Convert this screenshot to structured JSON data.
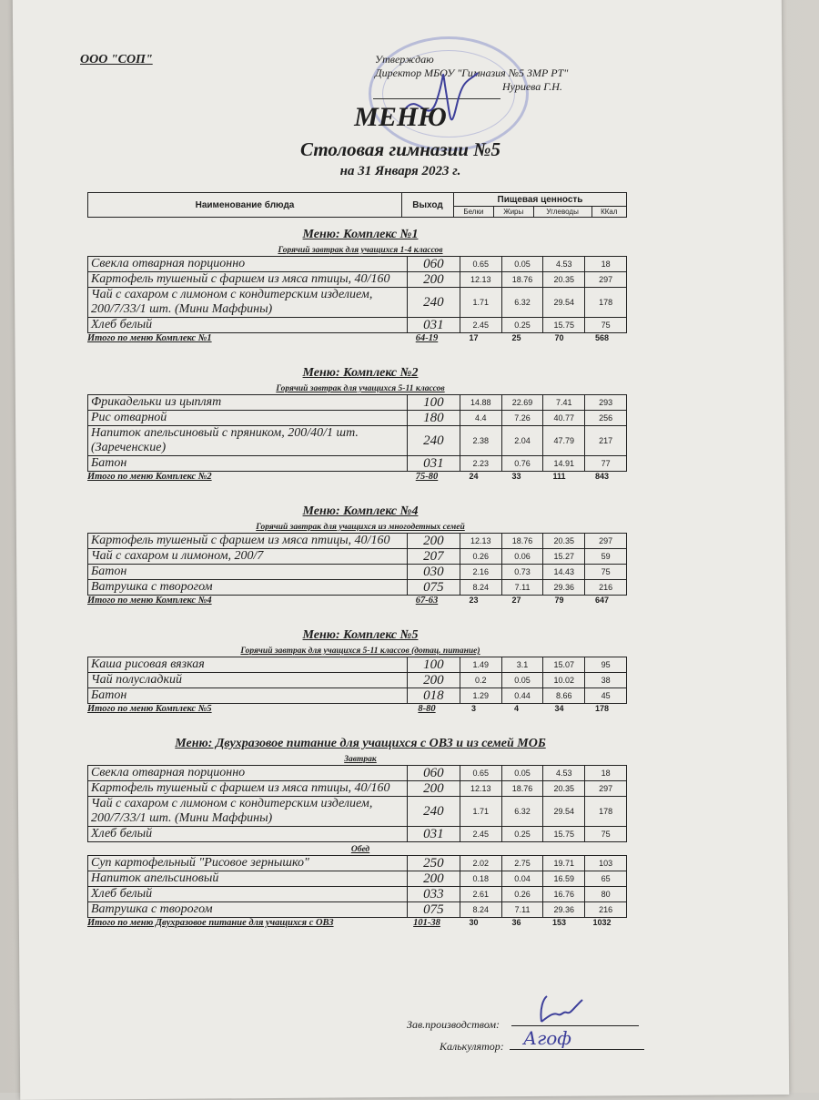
{
  "header": {
    "organization": "ООО \"СОП\"",
    "approval": {
      "line1": "Утверждаю",
      "line2": "Директор МБОУ \"Гимназия №5 ЗМР РТ\"",
      "name": "Нуриева Г.Н."
    },
    "title": "МЕНЮ",
    "subtitle": "Столовая гимназии №5",
    "date": "на 31 Января 2023 г."
  },
  "columns": {
    "name": "Наименование блюда",
    "output": "Выход",
    "nutrition": "Пищевая ценность",
    "protein": "Белки",
    "fat": "Жиры",
    "carbs": "Углеводы",
    "kcal": "ККал"
  },
  "sections": [
    {
      "title": "Меню: Комплекс №1",
      "groups": [
        {
          "caption": "Горячий завтрак для учащихся 1-4 классов",
          "rows": [
            {
              "name": "Свекла отварная порционно",
              "output": "060",
              "protein": "0.65",
              "fat": "0.05",
              "carbs": "4.53",
              "kcal": "18"
            },
            {
              "name": "Картофель тушеный с фаршем из мяса птицы, 40/160",
              "output": "200",
              "protein": "12.13",
              "fat": "18.76",
              "carbs": "20.35",
              "kcal": "297"
            },
            {
              "name": "Чай с сахаром с лимоном с кондитерским изделием, 200/7/33/1 шт. (Мини Маффины)",
              "output": "240",
              "protein": "1.71",
              "fat": "6.32",
              "carbs": "29.54",
              "kcal": "178"
            },
            {
              "name": "Хлеб белый",
              "output": "031",
              "protein": "2.45",
              "fat": "0.25",
              "carbs": "15.75",
              "kcal": "75"
            }
          ]
        }
      ],
      "total": {
        "label": "Итого по меню Комплекс №1",
        "price": "64-19",
        "protein": "17",
        "fat": "25",
        "carbs": "70",
        "kcal": "568"
      }
    },
    {
      "title": "Меню: Комплекс №2",
      "groups": [
        {
          "caption": "Горячий завтрак для учащихся 5-11 классов",
          "rows": [
            {
              "name": "Фрикадельки из цыплят",
              "output": "100",
              "protein": "14.88",
              "fat": "22.69",
              "carbs": "7.41",
              "kcal": "293"
            },
            {
              "name": "Рис отварной",
              "output": "180",
              "protein": "4.4",
              "fat": "7.26",
              "carbs": "40.77",
              "kcal": "256"
            },
            {
              "name": "Напиток апельсиновый с пряником, 200/40/1 шт. (Зареченские)",
              "output": "240",
              "protein": "2.38",
              "fat": "2.04",
              "carbs": "47.79",
              "kcal": "217"
            },
            {
              "name": "Батон",
              "output": "031",
              "protein": "2.23",
              "fat": "0.76",
              "carbs": "14.91",
              "kcal": "77"
            }
          ]
        }
      ],
      "total": {
        "label": "Итого по меню Комплекс №2",
        "price": "75-80",
        "protein": "24",
        "fat": "33",
        "carbs": "111",
        "kcal": "843"
      }
    },
    {
      "title": "Меню: Комплекс №4",
      "groups": [
        {
          "caption": "Горячий завтрак для учащихся из многодетных семей",
          "rows": [
            {
              "name": "Картофель тушеный с фаршем из мяса птицы, 40/160",
              "output": "200",
              "protein": "12.13",
              "fat": "18.76",
              "carbs": "20.35",
              "kcal": "297"
            },
            {
              "name": "Чай с сахаром и лимоном, 200/7",
              "output": "207",
              "protein": "0.26",
              "fat": "0.06",
              "carbs": "15.27",
              "kcal": "59"
            },
            {
              "name": "Батон",
              "output": "030",
              "protein": "2.16",
              "fat": "0.73",
              "carbs": "14.43",
              "kcal": "75"
            },
            {
              "name": "Ватрушка с творогом",
              "output": "075",
              "protein": "8.24",
              "fat": "7.11",
              "carbs": "29.36",
              "kcal": "216"
            }
          ]
        }
      ],
      "total": {
        "label": "Итого по меню Комплекс №4",
        "price": "67-63",
        "protein": "23",
        "fat": "27",
        "carbs": "79",
        "kcal": "647"
      }
    },
    {
      "title": "Меню: Комплекс №5",
      "groups": [
        {
          "caption": "Горячий завтрак для учащихся 5-11 классов (дотац. питание)",
          "rows": [
            {
              "name": "Каша рисовая вязкая",
              "output": "100",
              "protein": "1.49",
              "fat": "3.1",
              "carbs": "15.07",
              "kcal": "95"
            },
            {
              "name": "Чай полусладкий",
              "output": "200",
              "protein": "0.2",
              "fat": "0.05",
              "carbs": "10.02",
              "kcal": "38"
            },
            {
              "name": "Батон",
              "output": "018",
              "protein": "1.29",
              "fat": "0.44",
              "carbs": "8.66",
              "kcal": "45"
            }
          ]
        }
      ],
      "total": {
        "label": "Итого по меню Комплекс №5",
        "price": "8-80",
        "protein": "3",
        "fat": "4",
        "carbs": "34",
        "kcal": "178"
      }
    },
    {
      "title": "Меню: Двухразовое питание для учащихся с ОВЗ и из семей МОБ",
      "groups": [
        {
          "caption": "Завтрак",
          "rows": [
            {
              "name": "Свекла отварная порционно",
              "output": "060",
              "protein": "0.65",
              "fat": "0.05",
              "carbs": "4.53",
              "kcal": "18"
            },
            {
              "name": "Картофель тушеный с фаршем из мяса птицы, 40/160",
              "output": "200",
              "protein": "12.13",
              "fat": "18.76",
              "carbs": "20.35",
              "kcal": "297"
            },
            {
              "name": "Чай с сахаром с лимоном с кондитерским изделием, 200/7/33/1 шт. (Мини Маффины)",
              "output": "240",
              "protein": "1.71",
              "fat": "6.32",
              "carbs": "29.54",
              "kcal": "178"
            },
            {
              "name": "Хлеб белый",
              "output": "031",
              "protein": "2.45",
              "fat": "0.25",
              "carbs": "15.75",
              "kcal": "75"
            }
          ]
        },
        {
          "caption": "Обед",
          "rows": [
            {
              "name": "Суп картофельный \"Рисовое зернышко\"",
              "output": "250",
              "protein": "2.02",
              "fat": "2.75",
              "carbs": "19.71",
              "kcal": "103"
            },
            {
              "name": "Напиток апельсиновый",
              "output": "200",
              "protein": "0.18",
              "fat": "0.04",
              "carbs": "16.59",
              "kcal": "65"
            },
            {
              "name": "Хлеб белый",
              "output": "033",
              "protein": "2.61",
              "fat": "0.26",
              "carbs": "16.76",
              "kcal": "80"
            },
            {
              "name": "Ватрушка с творогом",
              "output": "075",
              "protein": "8.24",
              "fat": "7.11",
              "carbs": "29.36",
              "kcal": "216"
            }
          ]
        }
      ],
      "total": {
        "label": "Итого по меню Двухразовое питание для учащихся с ОВЗ",
        "price": "101-38",
        "protein": "30",
        "fat": "36",
        "carbs": "153",
        "kcal": "1032"
      }
    }
  ],
  "footer": {
    "production_head": "Зав.производством:",
    "calculator": "Калькулятор:",
    "signature_calculator": "Агоф"
  },
  "colors": {
    "paper": "#ecebe7",
    "ink_stamp": "#5a64be",
    "signature": "#3d3f9a"
  }
}
